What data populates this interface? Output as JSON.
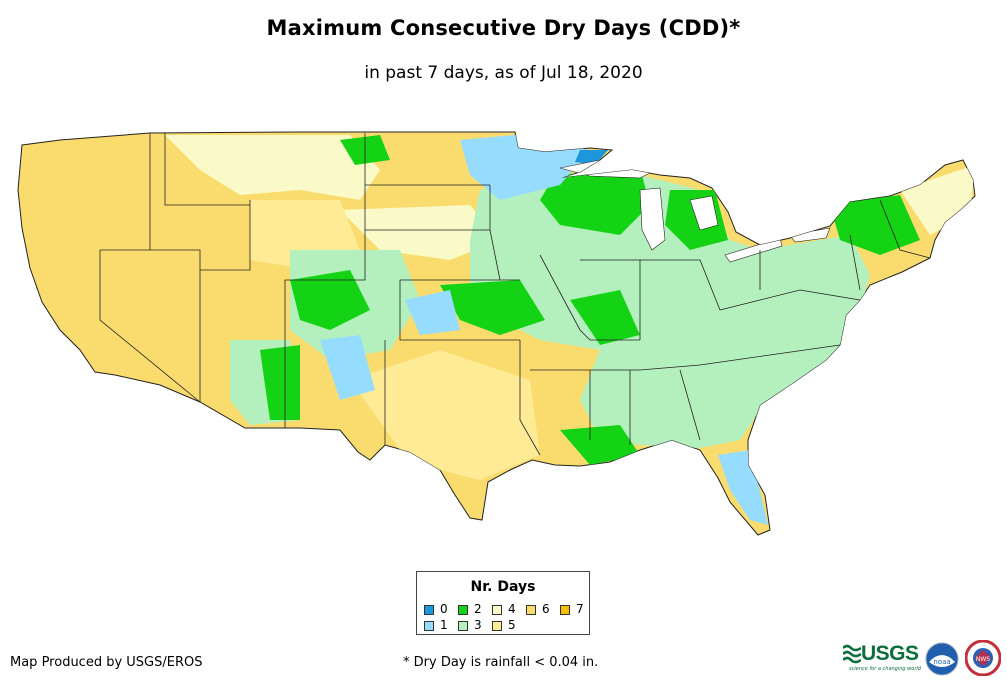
{
  "title": "Maximum Consecutive Dry Days (CDD)*",
  "subtitle": "in past 7 days, as of Jul 18, 2020",
  "legend": {
    "title": "Nr. Days",
    "items": [
      {
        "label": "0",
        "color": "#1e96dc"
      },
      {
        "label": "1",
        "color": "#96dcff"
      },
      {
        "label": "2",
        "color": "#14d214"
      },
      {
        "label": "3",
        "color": "#b4f0be"
      },
      {
        "label": "4",
        "color": "#fafac8"
      },
      {
        "label": "5",
        "color": "#ffeb96"
      },
      {
        "label": "6",
        "color": "#fadc6e"
      },
      {
        "label": "7",
        "color": "#f5be00"
      }
    ]
  },
  "credit": "Map Produced by USGS/EROS",
  "footnote": "* Dry Day is rainfall < 0.04 in.",
  "logos": {
    "usgs": "USGS",
    "usgs_tagline": "science for a changing world",
    "noaa": "noaa",
    "nws": "NWS"
  }
}
